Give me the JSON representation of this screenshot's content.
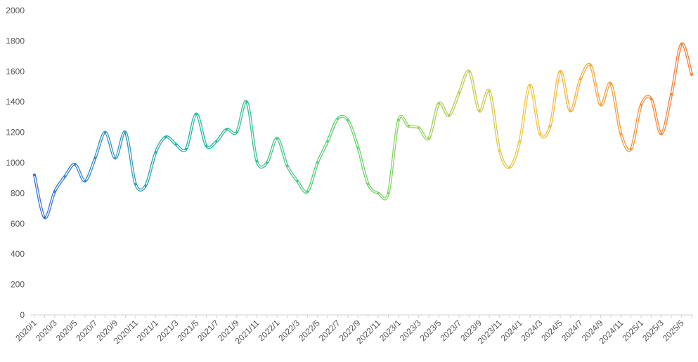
{
  "chart_data": {
    "type": "line",
    "title": "",
    "xlabel": "",
    "ylabel": "",
    "ylim": [
      0,
      2000
    ],
    "yticks": [
      0,
      200,
      400,
      600,
      800,
      1000,
      1200,
      1400,
      1600,
      1800,
      2000
    ],
    "grid": false,
    "legend": "none",
    "line_style": "smooth double stroke with hollow center",
    "color_gradient": [
      "#3f6fdc",
      "#25b9a6",
      "#6bd46a",
      "#f2c744",
      "#f07a3a"
    ],
    "categories": [
      "2020/1",
      "2020/2",
      "2020/3",
      "2020/4",
      "2020/5",
      "2020/6",
      "2020/7",
      "2020/8",
      "2020/9",
      "2020/10",
      "2020/11",
      "2020/12",
      "2021/1",
      "2021/2",
      "2021/3",
      "2021/4",
      "2021/5",
      "2021/6",
      "2021/7",
      "2021/8",
      "2021/9",
      "2021/10",
      "2021/11",
      "2021/12",
      "2022/1",
      "2022/2",
      "2022/3",
      "2022/4",
      "2022/5",
      "2022/6",
      "2022/7",
      "2022/8",
      "2022/9",
      "2022/10",
      "2022/11",
      "2022/12",
      "2023/1",
      "2023/2",
      "2023/3",
      "2023/4",
      "2023/5",
      "2023/6",
      "2023/7",
      "2023/8",
      "2023/9",
      "2023/10",
      "2023/11",
      "2023/12",
      "2024/1",
      "2024/2",
      "2024/3",
      "2024/4",
      "2024/5",
      "2024/6",
      "2024/7",
      "2024/8",
      "2024/9",
      "2024/10",
      "2024/11",
      "2024/12",
      "2025/1",
      "2025/2",
      "2025/3",
      "2025/4",
      "2025/5",
      "2025/6"
    ],
    "x_tick_labels": [
      "2020/1",
      "2020/3",
      "2020/5",
      "2020/7",
      "2020/9",
      "2020/11",
      "2021/1",
      "2021/3",
      "2021/5",
      "2021/7",
      "2021/9",
      "2021/11",
      "2022/1",
      "2022/3",
      "2022/5",
      "2022/7",
      "2022/9",
      "2022/11",
      "2023/1",
      "2023/3",
      "2023/5",
      "2023/7",
      "2023/9",
      "2023/11",
      "2024/1",
      "2024/3",
      "2024/5",
      "2024/7",
      "2024/9",
      "2024/11",
      "2025/1",
      "2025/3",
      "2025/5"
    ],
    "series": [
      {
        "values": [
          920,
          640,
          810,
          910,
          990,
          880,
          1030,
          1200,
          1030,
          1200,
          860,
          850,
          1070,
          1170,
          1120,
          1090,
          1320,
          1110,
          1140,
          1220,
          1200,
          1400,
          1010,
          1000,
          1160,
          980,
          880,
          810,
          1000,
          1140,
          1290,
          1280,
          1100,
          860,
          800,
          800,
          1280,
          1240,
          1230,
          1160,
          1390,
          1310,
          1460,
          1600,
          1340,
          1470,
          1080,
          970,
          1140,
          1510,
          1190,
          1240,
          1600,
          1340,
          1550,
          1640,
          1380,
          1520,
          1190,
          1090,
          1380,
          1420,
          1190,
          1450,
          1780,
          1580
        ]
      }
    ]
  }
}
